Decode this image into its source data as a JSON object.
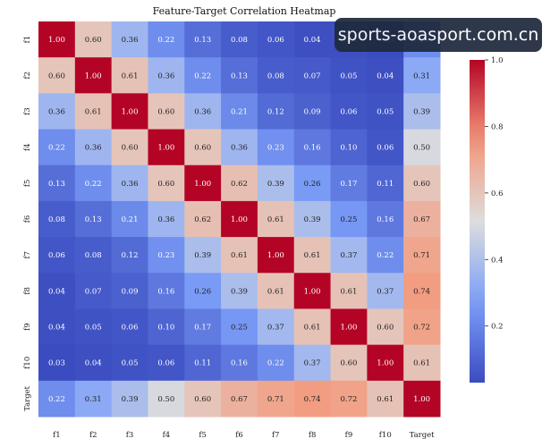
{
  "chart_data": {
    "type": "heatmap",
    "title": "Feature-Target Correlation Heatmap",
    "x_labels": [
      "f1",
      "f2",
      "f3",
      "f4",
      "f5",
      "f6",
      "f7",
      "f8",
      "f9",
      "f10",
      "Target"
    ],
    "y_labels": [
      "f1",
      "f2",
      "f3",
      "f4",
      "f5",
      "f6",
      "f7",
      "f8",
      "f9",
      "f10",
      "Target"
    ],
    "values": [
      [
        1.0,
        0.6,
        0.36,
        0.22,
        0.13,
        0.08,
        0.06,
        0.04,
        0.04,
        0.03,
        0.22
      ],
      [
        0.6,
        1.0,
        0.61,
        0.36,
        0.22,
        0.13,
        0.08,
        0.07,
        0.05,
        0.04,
        0.31
      ],
      [
        0.36,
        0.61,
        1.0,
        0.6,
        0.36,
        0.21,
        0.12,
        0.09,
        0.06,
        0.05,
        0.39
      ],
      [
        0.22,
        0.36,
        0.6,
        1.0,
        0.6,
        0.36,
        0.23,
        0.16,
        0.1,
        0.06,
        0.5
      ],
      [
        0.13,
        0.22,
        0.36,
        0.6,
        1.0,
        0.62,
        0.39,
        0.26,
        0.17,
        0.11,
        0.6
      ],
      [
        0.08,
        0.13,
        0.21,
        0.36,
        0.62,
        1.0,
        0.61,
        0.39,
        0.25,
        0.16,
        0.67
      ],
      [
        0.06,
        0.08,
        0.12,
        0.23,
        0.39,
        0.61,
        1.0,
        0.61,
        0.37,
        0.22,
        0.71
      ],
      [
        0.04,
        0.07,
        0.09,
        0.16,
        0.26,
        0.39,
        0.61,
        1.0,
        0.61,
        0.37,
        0.74
      ],
      [
        0.04,
        0.05,
        0.06,
        0.1,
        0.17,
        0.25,
        0.37,
        0.61,
        1.0,
        0.6,
        0.72
      ],
      [
        0.03,
        0.04,
        0.05,
        0.06,
        0.11,
        0.16,
        0.22,
        0.37,
        0.6,
        1.0,
        0.61
      ],
      [
        0.22,
        0.31,
        0.39,
        0.5,
        0.6,
        0.67,
        0.71,
        0.74,
        0.72,
        0.61,
        1.0
      ]
    ],
    "colormap": "coolwarm",
    "vmin": 0.03,
    "vmax": 1.0,
    "colorbar_ticks": [
      "0.2",
      "0.4",
      "0.6",
      "0.8",
      "1.0"
    ]
  },
  "watermark": "sports-aoasport.com.cn"
}
